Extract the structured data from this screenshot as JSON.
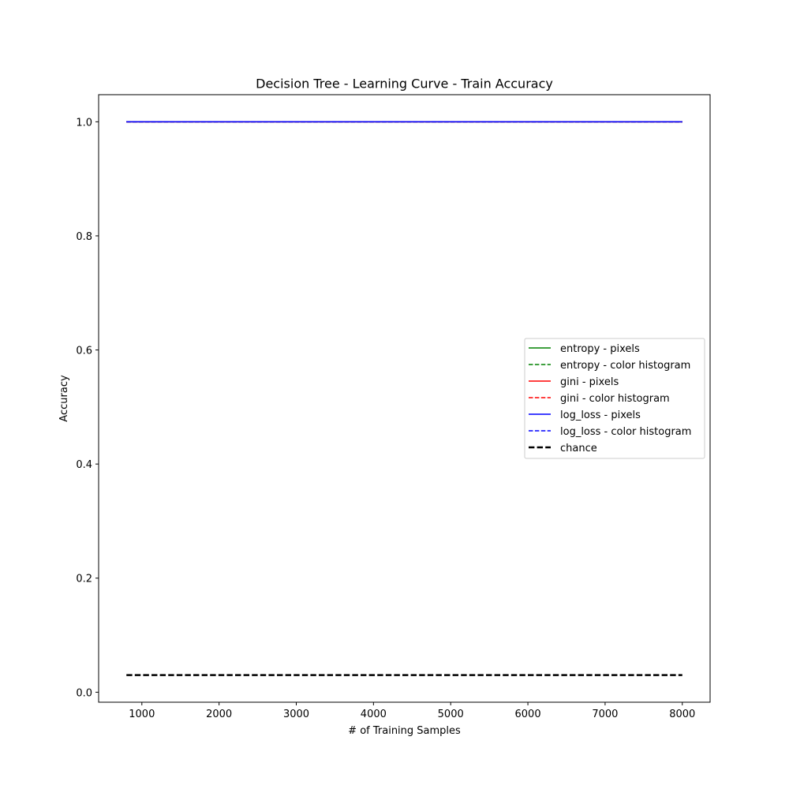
{
  "chart_data": {
    "type": "line",
    "title": "Decision Tree - Learning Curve - Train Accuracy",
    "xlabel": "# of Training Samples",
    "ylabel": "Accuracy",
    "xlim": [
      440,
      8360
    ],
    "ylim": [
      -0.0175,
      1.0475
    ],
    "xticks": [
      1000,
      2000,
      3000,
      4000,
      5000,
      6000,
      7000,
      8000
    ],
    "yticks": [
      0.0,
      0.2,
      0.4,
      0.6,
      0.8,
      1.0
    ],
    "ytick_labels": [
      "0.0",
      "0.2",
      "0.4",
      "0.6",
      "0.8",
      "1.0"
    ],
    "grid": false,
    "legend_position": "center-right",
    "x": [
      800,
      1600,
      2400,
      3200,
      4000,
      4800,
      5600,
      6400,
      7200,
      8000
    ],
    "series": [
      {
        "name": "entropy - pixels",
        "color": "#008000",
        "dash": "solid",
        "values": [
          1,
          1,
          1,
          1,
          1,
          1,
          1,
          1,
          1,
          1
        ]
      },
      {
        "name": "entropy - color histogram",
        "color": "#008000",
        "dash": "dashed",
        "values": [
          1,
          1,
          1,
          1,
          1,
          1,
          1,
          1,
          1,
          1
        ]
      },
      {
        "name": "gini - pixels",
        "color": "#ff0000",
        "dash": "solid",
        "values": [
          1,
          1,
          1,
          1,
          1,
          1,
          1,
          1,
          1,
          1
        ]
      },
      {
        "name": "gini - color histogram",
        "color": "#ff0000",
        "dash": "dashed",
        "values": [
          1,
          1,
          1,
          1,
          1,
          1,
          1,
          1,
          1,
          1
        ]
      },
      {
        "name": "log_loss - pixels",
        "color": "#0000ff",
        "dash": "solid",
        "values": [
          1,
          1,
          1,
          1,
          1,
          1,
          1,
          1,
          1,
          1
        ]
      },
      {
        "name": "log_loss - color histogram",
        "color": "#0000ff",
        "dash": "dashed",
        "values": [
          1,
          1,
          1,
          1,
          1,
          1,
          1,
          1,
          1,
          1
        ]
      },
      {
        "name": "chance",
        "color": "#000000",
        "dash": "dashed-bold",
        "values": [
          0.03,
          0.03,
          0.03,
          0.03,
          0.03,
          0.03,
          0.03,
          0.03,
          0.03,
          0.03
        ]
      }
    ]
  }
}
